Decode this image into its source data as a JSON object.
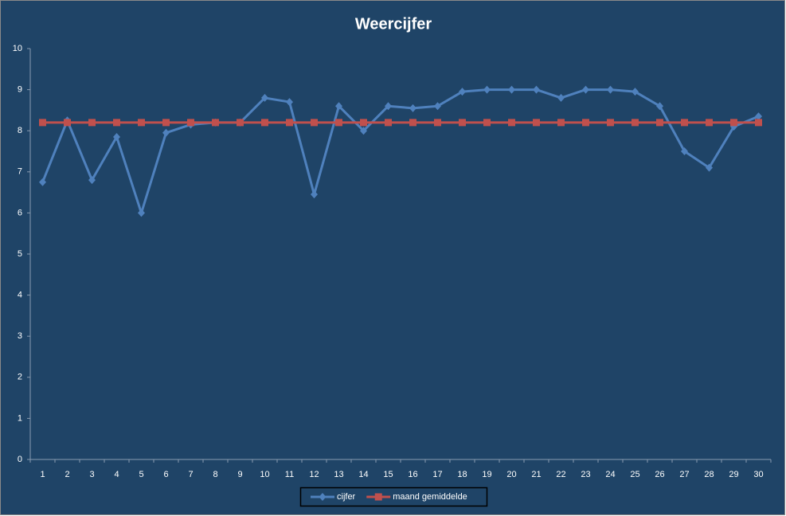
{
  "chart_data": {
    "type": "line",
    "title": "Weercijfer",
    "categories": [
      "1",
      "2",
      "3",
      "4",
      "5",
      "6",
      "7",
      "8",
      "9",
      "10",
      "11",
      "12",
      "13",
      "14",
      "15",
      "16",
      "17",
      "18",
      "19",
      "20",
      "21",
      "22",
      "23",
      "24",
      "25",
      "26",
      "27",
      "28",
      "29",
      "30"
    ],
    "series": [
      {
        "name": "cijfer",
        "color": "#4f81bd",
        "marker": "diamond",
        "values": [
          6.75,
          8.25,
          6.8,
          7.85,
          6.0,
          7.95,
          8.15,
          8.2,
          8.2,
          8.8,
          8.7,
          6.45,
          8.6,
          8.0,
          8.6,
          8.55,
          8.6,
          8.95,
          9.0,
          9.0,
          9.0,
          8.8,
          9.0,
          9.0,
          8.95,
          8.6,
          7.5,
          7.1,
          8.1,
          8.35
        ]
      },
      {
        "name": "maand gemiddelde",
        "color": "#c0504d",
        "marker": "square",
        "values": [
          8.2,
          8.2,
          8.2,
          8.2,
          8.2,
          8.2,
          8.2,
          8.2,
          8.2,
          8.2,
          8.2,
          8.2,
          8.2,
          8.2,
          8.2,
          8.2,
          8.2,
          8.2,
          8.2,
          8.2,
          8.2,
          8.2,
          8.2,
          8.2,
          8.2,
          8.2,
          8.2,
          8.2,
          8.2,
          8.2
        ]
      }
    ],
    "ylim": [
      0,
      10
    ],
    "yticks": [
      0,
      1,
      2,
      3,
      4,
      5,
      6,
      7,
      8,
      9,
      10
    ],
    "grid": false,
    "legend": "bottom"
  }
}
